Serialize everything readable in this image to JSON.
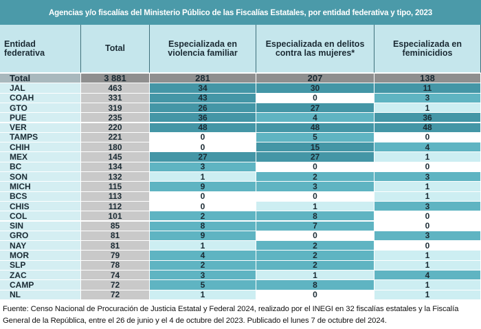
{
  "title": "Agencias y/o fiscalías del Ministerio Público de las Fiscalías Estatales, por entidad federativa y tipo, 2023",
  "table": {
    "headers": [
      "Entidad federativa",
      "Total",
      "Especializada en violencia familiar",
      "Especializada en delitos contra las mujeres*",
      "Especializada en feminicidios"
    ],
    "rows": [
      [
        "Total",
        "3 881",
        281,
        207,
        138
      ],
      [
        "JAL",
        463,
        34,
        30,
        11
      ],
      [
        "COAH",
        331,
        43,
        0,
        3
      ],
      [
        "GTO",
        319,
        26,
        27,
        1
      ],
      [
        "PUE",
        235,
        36,
        4,
        36
      ],
      [
        "VER",
        220,
        48,
        48,
        48
      ],
      [
        "TAMPS",
        221,
        0,
        5,
        0
      ],
      [
        "CHIH",
        180,
        0,
        15,
        4
      ],
      [
        "MEX",
        145,
        27,
        27,
        1
      ],
      [
        "BC",
        134,
        3,
        0,
        0
      ],
      [
        "SON",
        132,
        1,
        2,
        3
      ],
      [
        "MICH",
        115,
        9,
        3,
        1
      ],
      [
        "BCS",
        113,
        0,
        0,
        1
      ],
      [
        "CHIS",
        112,
        0,
        1,
        3
      ],
      [
        "COL",
        101,
        2,
        8,
        0
      ],
      [
        "SIN",
        85,
        8,
        7,
        0
      ],
      [
        "GRO",
        81,
        9,
        0,
        3
      ],
      [
        "NAY",
        81,
        1,
        2,
        0
      ],
      [
        "MOR",
        79,
        4,
        2,
        1
      ],
      [
        "SLP",
        78,
        2,
        2,
        1
      ],
      [
        "ZAC",
        74,
        3,
        1,
        4
      ],
      [
        "CAMP",
        72,
        5,
        8,
        1
      ],
      [
        "NL",
        72,
        1,
        0,
        1
      ]
    ]
  },
  "footer": "Fuente: Censo Nacional de Procuración de Justicia Estatal y Federal 2024, realizado por el INEGI en 32 fiscalías estatales y la Fiscalía General de la República, entre el 26 de junio y el 4 de octubre del 2023. Publicado el lunes 7 de octubre del 2024."
}
